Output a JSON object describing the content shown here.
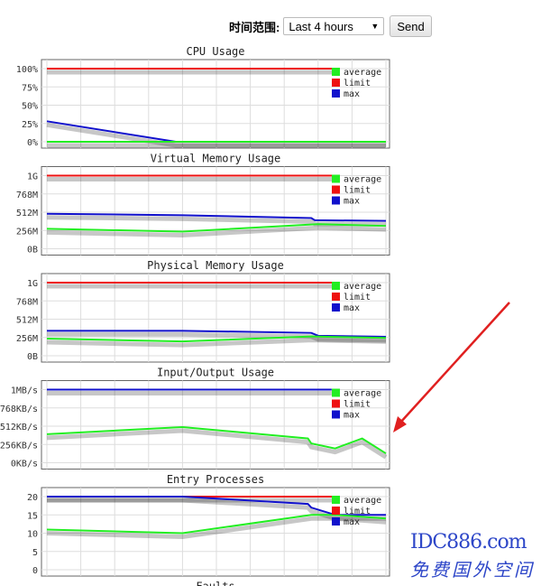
{
  "header": {
    "time_range_label": "时间范围:",
    "time_range_value": "Last 4 hours",
    "send_label": "Send"
  },
  "legend": [
    "average",
    "limit",
    "max"
  ],
  "colors": {
    "average": "#22ee22",
    "limit": "#ee1111",
    "max": "#1111cc",
    "arrow": "#e02020",
    "watermark": "#2d46c8"
  },
  "charts": [
    {
      "title": "CPU Usage",
      "ticks": [
        "0%",
        "25%",
        "50%",
        "75%",
        "100%"
      ],
      "ymax": 100,
      "series": {
        "limit": [
          [
            0,
            100
          ],
          [
            8.5,
            100
          ]
        ],
        "max": [
          [
            0,
            28
          ],
          [
            3.8,
            0
          ],
          [
            10,
            0
          ]
        ],
        "average": [
          [
            0,
            0
          ],
          [
            10,
            0
          ]
        ]
      }
    },
    {
      "title": "Virtual Memory Usage",
      "ticks": [
        "0B",
        "256M",
        "512M",
        "768M",
        "1G"
      ],
      "ymax": 1024,
      "series": {
        "limit": [
          [
            0,
            1024
          ],
          [
            8.5,
            1024
          ]
        ],
        "max": [
          [
            0,
            490
          ],
          [
            4,
            470
          ],
          [
            7.8,
            430
          ],
          [
            7.9,
            400
          ],
          [
            10,
            390
          ]
        ],
        "average": [
          [
            0,
            280
          ],
          [
            4,
            240
          ],
          [
            7.8,
            340
          ],
          [
            8,
            345
          ],
          [
            10,
            320
          ]
        ]
      }
    },
    {
      "title": "Physical Memory Usage",
      "ticks": [
        "0B",
        "256M",
        "512M",
        "768M",
        "1G"
      ],
      "ymax": 1024,
      "series": {
        "limit": [
          [
            0,
            1024
          ],
          [
            8.5,
            1024
          ]
        ],
        "max": [
          [
            0,
            350
          ],
          [
            4,
            350
          ],
          [
            7.8,
            320
          ],
          [
            8,
            280
          ],
          [
            10,
            265
          ]
        ],
        "average": [
          [
            0,
            240
          ],
          [
            4,
            200
          ],
          [
            7.8,
            270
          ],
          [
            10,
            250
          ]
        ]
      }
    },
    {
      "title": "Input/Output Usage",
      "ticks": [
        "0KB/s",
        "256KB/s",
        "512KB/s",
        "768KB/s",
        "1MB/s"
      ],
      "ymax": 1024,
      "series": {
        "max": [
          [
            0,
            1024
          ],
          [
            8.4,
            1024
          ]
        ],
        "average": [
          [
            0,
            400
          ],
          [
            4,
            500
          ],
          [
            7.7,
            340
          ],
          [
            7.8,
            270
          ],
          [
            8.5,
            200
          ],
          [
            9.3,
            340
          ],
          [
            10,
            130
          ]
        ]
      }
    },
    {
      "title": "Entry Processes",
      "ticks": [
        "0",
        "5",
        "10",
        "15",
        "20"
      ],
      "ymax": 20,
      "series": {
        "limit": [
          [
            0,
            20
          ],
          [
            8.5,
            20
          ]
        ],
        "max": [
          [
            0,
            20
          ],
          [
            4,
            20
          ],
          [
            7.7,
            18
          ],
          [
            7.8,
            17
          ],
          [
            8.5,
            15
          ],
          [
            10,
            15
          ]
        ],
        "average": [
          [
            0,
            11
          ],
          [
            4,
            10
          ],
          [
            7.8,
            15
          ],
          [
            8.5,
            15
          ],
          [
            10,
            14
          ]
        ]
      }
    },
    {
      "title": "Faults",
      "ticks": [],
      "ymax": 1,
      "series": {}
    }
  ],
  "watermark": {
    "line1": "IDC886.com",
    "line2": "免费国外空间"
  }
}
